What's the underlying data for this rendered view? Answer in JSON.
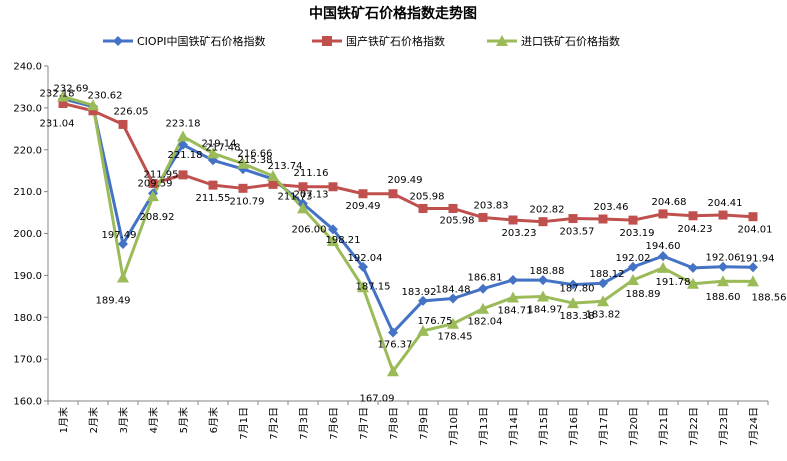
{
  "chart_data": {
    "type": "line",
    "title": "中国铁矿石价格指数走势图",
    "xlabel": "",
    "ylabel": "",
    "ylim": [
      160,
      240
    ],
    "ytick_step": 10,
    "ytick_labels": [
      "160.0",
      "170.0",
      "180.0",
      "190.0",
      "200.0",
      "210.0",
      "220.0",
      "230.0",
      "240.0"
    ],
    "grid": false,
    "legend_position": "top",
    "categories": [
      "1月末",
      "2月末",
      "3月末",
      "4月末",
      "5月末",
      "6月末",
      "7月1日",
      "7月2日",
      "7月3日",
      "7月6日",
      "7月7日",
      "7月8日",
      "7月9日",
      "7月10日",
      "7月13日",
      "7月14日",
      "7月15日",
      "7月16日",
      "7月17日",
      "7月20日",
      "7月21日",
      "7月22日",
      "7月23日",
      "7月24日"
    ],
    "series": [
      {
        "name": "CIOPI中国铁矿石价格指数",
        "color": "#4472C4",
        "marker": "diamond",
        "values": [
          232.18,
          230.3,
          197.49,
          209.59,
          221.18,
          217.48,
          215.38,
          213.0,
          207.13,
          201.0,
          192.04,
          176.37,
          183.92,
          184.48,
          186.81,
          188.9,
          188.88,
          187.8,
          188.12,
          192.02,
          194.6,
          191.8,
          192.06,
          191.94
        ],
        "labels": [
          "232.18",
          "",
          "197.49",
          "209.59",
          "221.18",
          "217.48",
          "215.38",
          "",
          "207.13",
          "",
          "192.04",
          "176.37",
          "183.92",
          "184.48",
          "186.81",
          "",
          "188.88",
          "187.80",
          "188.12",
          "192.02",
          "194.60",
          "",
          "192.06",
          "191.94"
        ]
      },
      {
        "name": "国产铁矿石价格指数",
        "color": "#C0504D",
        "marker": "square",
        "values": [
          231.04,
          229.3,
          226.05,
          211.95,
          214.0,
          211.55,
          210.79,
          211.73,
          211.16,
          211.16,
          209.49,
          209.49,
          205.98,
          205.98,
          203.83,
          203.23,
          202.82,
          203.57,
          203.46,
          203.19,
          204.68,
          204.23,
          204.41,
          204.01
        ],
        "labels": [
          "231.04",
          "",
          "226.05",
          "211.95",
          "",
          "211.55",
          "210.79",
          "211.73",
          "211.16",
          "",
          "209.49",
          "209.49",
          "205.98",
          "205.98",
          "203.83",
          "203.23",
          "202.82",
          "203.57",
          "203.46",
          "203.19",
          "204.68",
          "204.23",
          "204.41",
          "204.01"
        ]
      },
      {
        "name": "进口铁矿石价格指数",
        "color": "#9BBB59",
        "marker": "triangle",
        "values": [
          232.69,
          230.62,
          189.49,
          208.92,
          223.18,
          219.14,
          216.66,
          213.74,
          206.0,
          198.21,
          187.15,
          167.09,
          176.75,
          178.45,
          182.04,
          184.71,
          184.97,
          183.38,
          183.82,
          188.89,
          191.78,
          188.0,
          188.6,
          188.56
        ],
        "labels": [
          "232.69",
          "230.62",
          "189.49",
          "208.92",
          "223.18",
          "219.14",
          "216.66",
          "213.74",
          "206.00",
          "198.21",
          "187.15",
          "167.09",
          "176.75",
          "178.45",
          "182.04",
          "184.71",
          "184.97",
          "183.38",
          "183.82",
          "188.89",
          "191.78",
          "",
          "188.60",
          "188.56"
        ]
      }
    ]
  }
}
